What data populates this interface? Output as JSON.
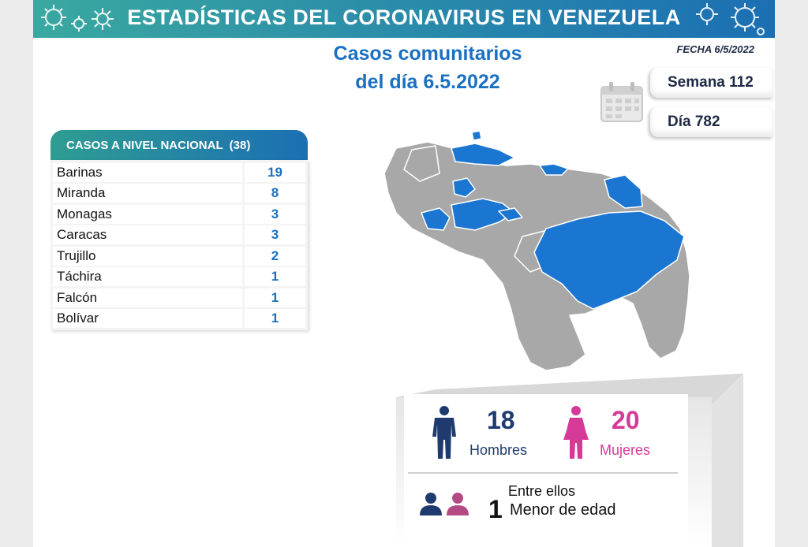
{
  "banner": {
    "title": "ESTADÍSTICAS DEL CORONAVIRUS EN VENEZUELA"
  },
  "fecha": "FECHA 6/5/2022",
  "heading": {
    "line1": "Casos comunitarios",
    "line2": "del día 6.5.2022"
  },
  "semana": "Semana 112",
  "dia": "Día 782",
  "table": {
    "header": "CASOS A NIVEL NACIONAL",
    "total": "(38)",
    "rows": [
      {
        "name": "Barinas",
        "value": "19"
      },
      {
        "name": "Miranda",
        "value": "8"
      },
      {
        "name": "Monagas",
        "value": "3"
      },
      {
        "name": "Caracas",
        "value": "3"
      },
      {
        "name": "Trujillo",
        "value": "2"
      },
      {
        "name": "Táchira",
        "value": "1"
      },
      {
        "name": "Falcón",
        "value": "1"
      },
      {
        "name": "Bolívar",
        "value": "1"
      }
    ]
  },
  "gender": {
    "men_count": "18",
    "men_label": "Hombres",
    "women_count": "20",
    "women_label": "Mujeres"
  },
  "minors": {
    "intro": "Entre ellos",
    "count": "1",
    "label": "Menor de edad"
  },
  "colors": {
    "highlight": "#1b76d2",
    "map_gray": "#a8a8a8",
    "men": "#1e3a6e",
    "women": "#d63a97",
    "banner_start": "#3aa8a0",
    "banner_end": "#1b6fb3"
  },
  "icons": [
    "virus-icon",
    "calendar-icon",
    "man-icon",
    "woman-icon",
    "people-icon"
  ]
}
